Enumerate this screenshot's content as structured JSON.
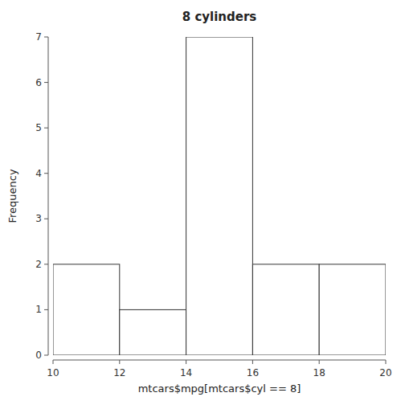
{
  "chart_data": {
    "type": "histogram",
    "title": "8 cylinders",
    "xlabel": "mtcars$mpg[mtcars$cyl == 8]",
    "ylabel": "Frequency",
    "bins": [
      10,
      12,
      14,
      16,
      18,
      20
    ],
    "values": [
      2,
      1,
      7,
      2,
      2
    ],
    "color": "#ffffff",
    "xlim": [
      10,
      20
    ],
    "ylim": [
      0,
      7
    ],
    "xticks": [
      10,
      12,
      14,
      16,
      18,
      20
    ],
    "yticks": [
      0,
      1,
      2,
      3,
      4,
      5,
      6,
      7
    ],
    "grid": false
  }
}
